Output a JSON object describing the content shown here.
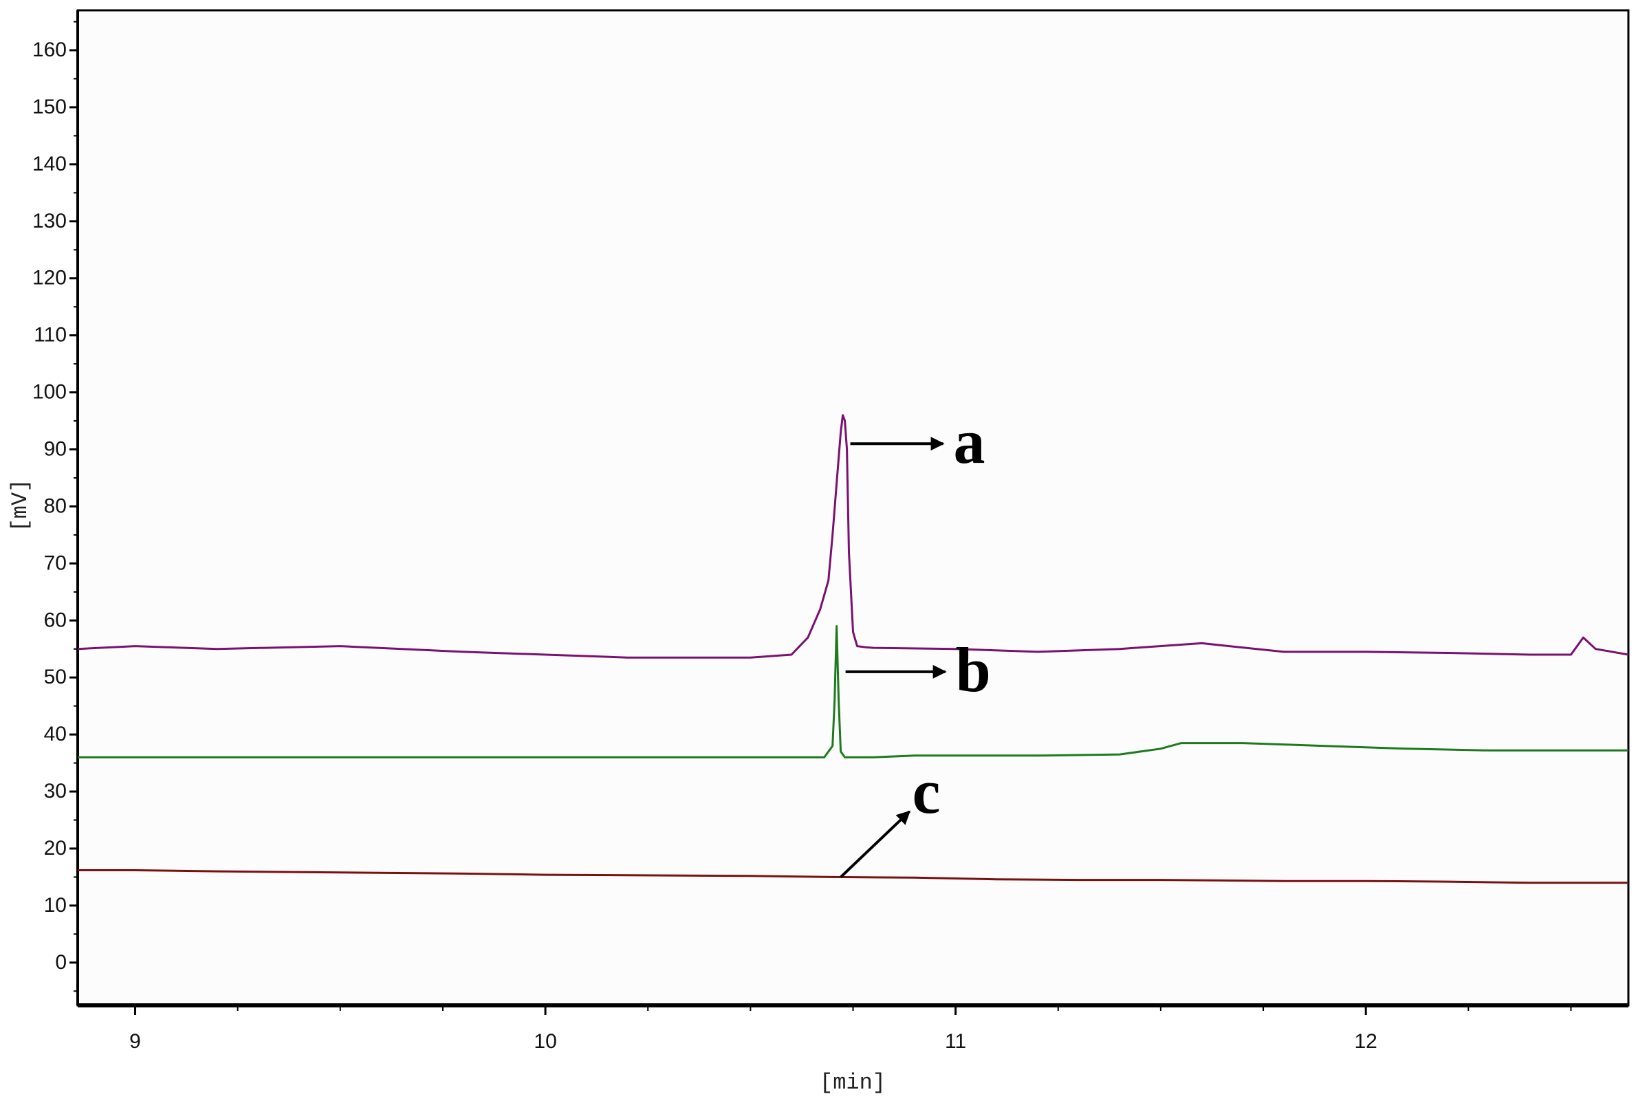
{
  "chart_data": {
    "type": "line",
    "title": "",
    "xlabel": "[min]",
    "ylabel": "[mV]",
    "xlim": [
      8.86,
      12.64
    ],
    "ylim": [
      -7.5,
      167
    ],
    "xticks": [
      "9",
      "10",
      "11",
      "12"
    ],
    "yticks": [
      "0",
      "10",
      "20",
      "30",
      "40",
      "50",
      "60",
      "70",
      "80",
      "90",
      "100",
      "110",
      "120",
      "130",
      "140",
      "150",
      "160"
    ],
    "grid": false,
    "legend": "none",
    "series": [
      {
        "label": "a",
        "color": "#7a1070",
        "x": [
          8.86,
          9.0,
          9.2,
          9.5,
          9.8,
          10.0,
          10.2,
          10.35,
          10.5,
          10.6,
          10.64,
          10.67,
          10.69,
          10.7,
          10.71,
          10.72,
          10.725,
          10.73,
          10.735,
          10.74,
          10.75,
          10.76,
          10.78,
          10.8,
          11.0,
          11.2,
          11.4,
          11.6,
          11.8,
          12.0,
          12.2,
          12.4,
          12.5,
          12.53,
          12.56,
          12.64
        ],
        "y": [
          55,
          55.5,
          55,
          55.5,
          54.5,
          54,
          53.5,
          53.5,
          53.5,
          54,
          57,
          62,
          67,
          75,
          84,
          93,
          96,
          95,
          90,
          72,
          58,
          55.5,
          55.3,
          55.2,
          55,
          54.5,
          55,
          56,
          54.5,
          54.5,
          54.3,
          54,
          54,
          57,
          55,
          54
        ]
      },
      {
        "label": "b",
        "color": "#1d7a1d",
        "x": [
          8.86,
          9.0,
          9.5,
          10.0,
          10.5,
          10.68,
          10.7,
          10.705,
          10.71,
          10.715,
          10.72,
          10.73,
          10.8,
          10.9,
          11.2,
          11.4,
          11.5,
          11.55,
          11.7,
          11.9,
          12.1,
          12.3,
          12.5,
          12.64
        ],
        "y": [
          36,
          36,
          36,
          36,
          36,
          36,
          38,
          46,
          59,
          46,
          37,
          36,
          36,
          36.3,
          36.3,
          36.5,
          37.5,
          38.5,
          38.5,
          38,
          37.5,
          37.2,
          37.2,
          37.2
        ]
      },
      {
        "label": "c",
        "color": "#7a1010",
        "x": [
          8.86,
          9.0,
          9.2,
          9.5,
          9.8,
          10.0,
          10.5,
          10.7,
          10.9,
          11.1,
          11.3,
          11.5,
          11.8,
          12.0,
          12.2,
          12.4,
          12.5,
          12.64
        ],
        "y": [
          16.2,
          16.2,
          16,
          15.8,
          15.6,
          15.4,
          15.2,
          15,
          14.9,
          14.6,
          14.5,
          14.5,
          14.3,
          14.3,
          14.2,
          14,
          14,
          14
        ]
      }
    ],
    "annotations": [
      {
        "text": "a",
        "series": "a"
      },
      {
        "text": "b",
        "series": "b"
      },
      {
        "text": "c",
        "series": "c"
      }
    ]
  }
}
